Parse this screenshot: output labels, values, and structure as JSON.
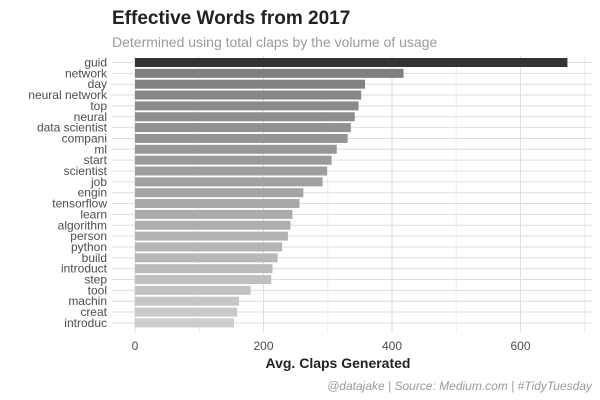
{
  "chart_data": {
    "type": "bar",
    "orientation": "horizontal",
    "title": "Effective Words from 2017",
    "subtitle": "Determined using total claps by the volume of usage",
    "xlabel": "Avg. Claps Generated",
    "ylabel": "",
    "caption": "@datajake | Source: Medium.com | #TidyTuesday",
    "xlim": [
      0,
      700
    ],
    "xticks": [
      0,
      200,
      400,
      600
    ],
    "grid": true,
    "legend": "none",
    "colors": {
      "darkest": "#333333",
      "lightest": "#cccccc"
    },
    "categories": [
      "guid",
      "network",
      "day",
      "neural network",
      "top",
      "neural",
      "data scientist",
      "compani",
      "ml",
      "start",
      "scientist",
      "job",
      "engin",
      "tensorflow",
      "learn",
      "algorithm",
      "person",
      "python",
      "build",
      "introduct",
      "step",
      "tool",
      "machin",
      "creat",
      "introduc"
    ],
    "values": [
      673,
      418,
      358,
      352,
      348,
      342,
      336,
      331,
      314,
      306,
      299,
      292,
      262,
      256,
      245,
      242,
      238,
      229,
      222,
      214,
      212,
      180,
      162,
      159,
      154
    ]
  }
}
